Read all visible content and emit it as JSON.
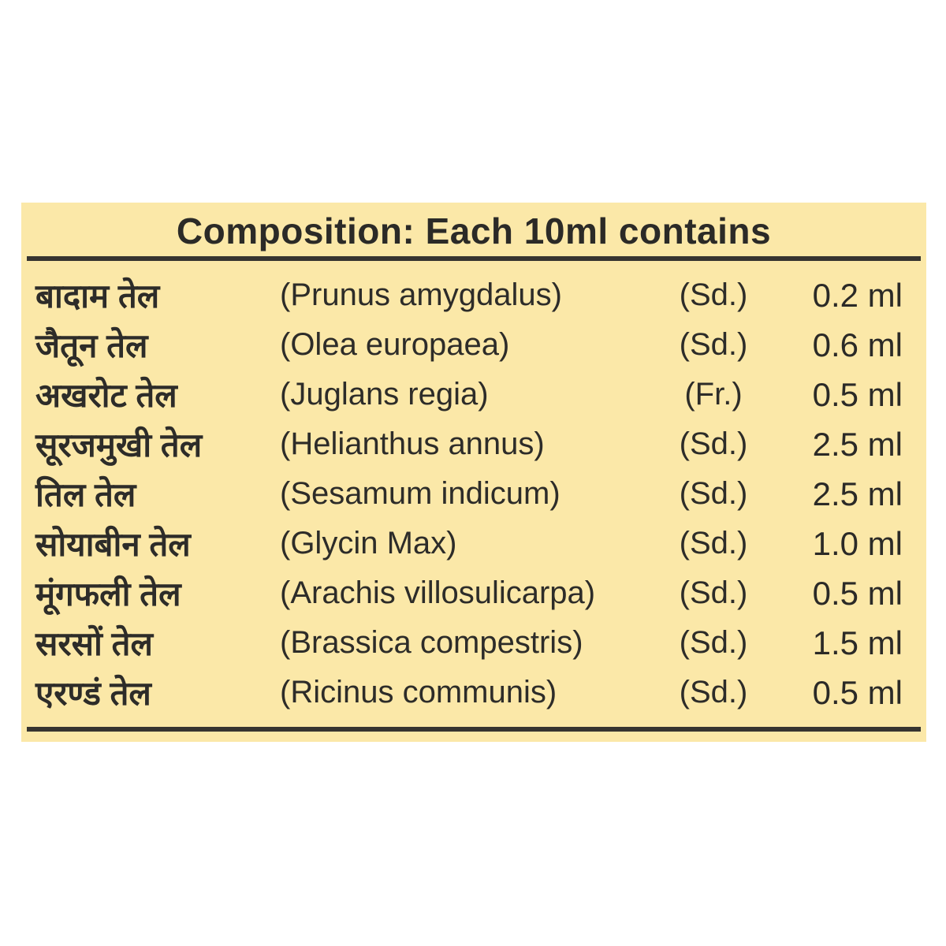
{
  "panel": {
    "title": "Composition: Each 10ml contains",
    "background_color": "#FBE8A8",
    "text_color": "#2D2C29",
    "rule_color": "#363430",
    "columns": [
      "hindi_name",
      "botanical_name",
      "plant_part",
      "quantity"
    ],
    "rows": [
      {
        "hindi": "बादाम तेल",
        "latin": "(Prunus amygdalus)",
        "part": "(Sd.)",
        "qty": "0.2 ml"
      },
      {
        "hindi": "जैतून तेल",
        "latin": "(Olea europaea)",
        "part": "(Sd.)",
        "qty": "0.6 ml"
      },
      {
        "hindi": "अखरोट तेल",
        "latin": "(Juglans regia)",
        "part": "(Fr.)",
        "qty": "0.5 ml"
      },
      {
        "hindi": "सूरजमुखी तेल",
        "latin": "(Helianthus annus)",
        "part": "(Sd.)",
        "qty": "2.5 ml"
      },
      {
        "hindi": "तिल तेल",
        "latin": "(Sesamum indicum)",
        "part": "(Sd.)",
        "qty": "2.5 ml"
      },
      {
        "hindi": "सोयाबीन तेल",
        "latin": "(Glycin Max)",
        "part": "(Sd.)",
        "qty": "1.0 ml"
      },
      {
        "hindi": "मूंगफली तेल",
        "latin": "(Arachis villosulicarpa)",
        "part": "(Sd.)",
        "qty": "0.5 ml"
      },
      {
        "hindi": "सरसों तेल",
        "latin": "(Brassica compestris)",
        "part": "(Sd.)",
        "qty": "1.5 ml"
      },
      {
        "hindi": "एरण्डं तेल",
        "latin": "(Ricinus communis)",
        "part": "(Sd.)",
        "qty": "0.5 ml"
      }
    ]
  }
}
